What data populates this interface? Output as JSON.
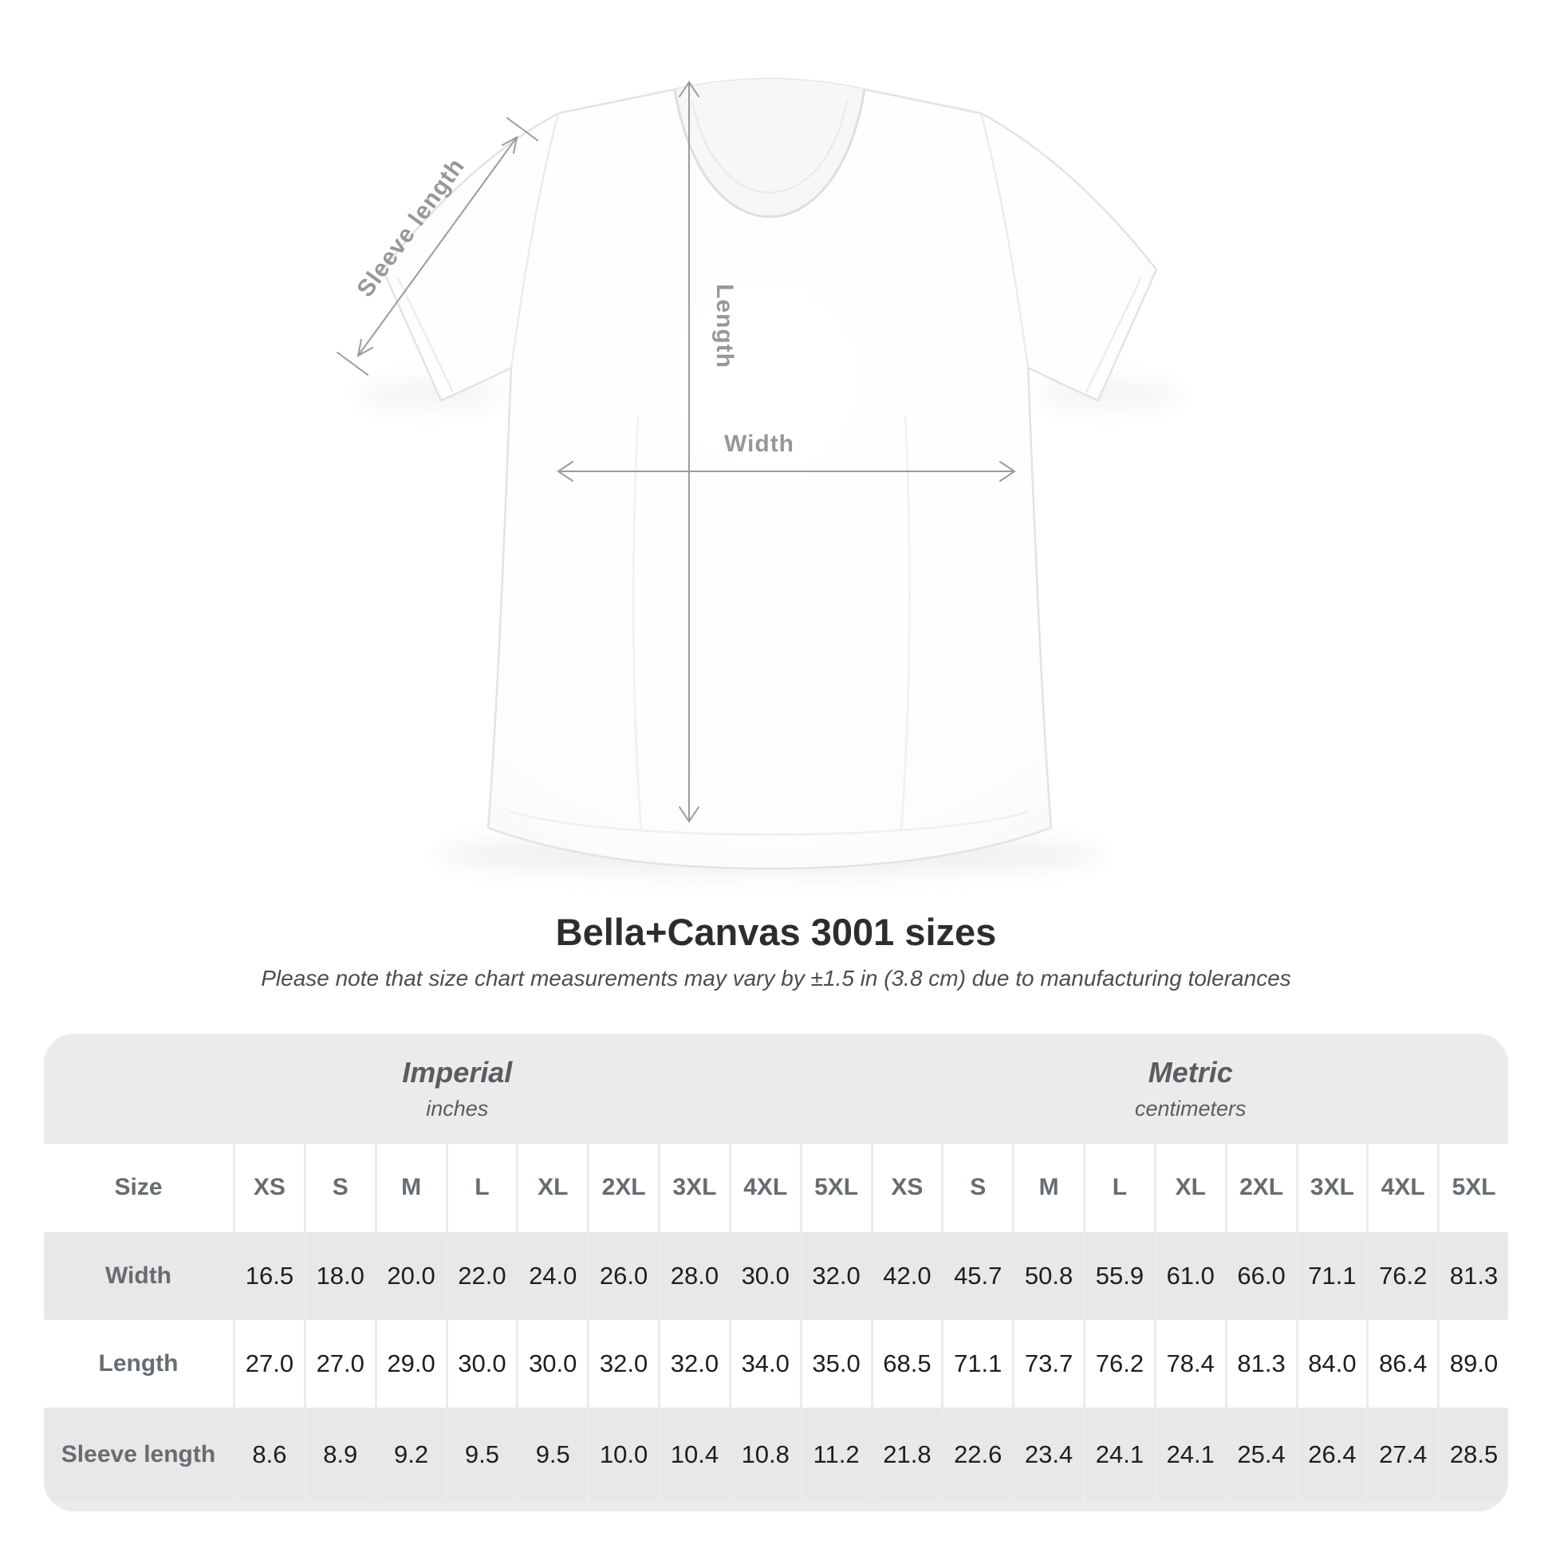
{
  "title": "Bella+Canvas 3001 sizes",
  "subtitle": "Please note that size chart measurements may vary by ±1.5 in (3.8 cm) due to manufacturing tolerances",
  "diagram": {
    "labels": {
      "sleeve_length": "Sleeve length",
      "length": "Length",
      "width": "Width"
    }
  },
  "table": {
    "groups": [
      {
        "label": "Imperial",
        "unit": "inches"
      },
      {
        "label": "Metric",
        "unit": "centimeters"
      }
    ],
    "size_label": "Size",
    "columns": [
      "XS",
      "S",
      "M",
      "L",
      "XL",
      "2XL",
      "3XL",
      "4XL",
      "5XL",
      "XS",
      "S",
      "M",
      "L",
      "XL",
      "2XL",
      "3XL",
      "4XL",
      "5XL"
    ],
    "rows": [
      {
        "label": "Width",
        "values": [
          "16.5",
          "18.0",
          "20.0",
          "22.0",
          "24.0",
          "26.0",
          "28.0",
          "30.0",
          "32.0",
          "42.0",
          "45.7",
          "50.8",
          "55.9",
          "61.0",
          "66.0",
          "71.1",
          "76.2",
          "81.3"
        ]
      },
      {
        "label": "Length",
        "values": [
          "27.0",
          "27.0",
          "29.0",
          "30.0",
          "30.0",
          "32.0",
          "32.0",
          "34.0",
          "35.0",
          "68.5",
          "71.1",
          "73.7",
          "76.2",
          "78.4",
          "81.3",
          "84.0",
          "86.4",
          "89.0"
        ]
      },
      {
        "label": "Sleeve length",
        "values": [
          "8.6",
          "8.9",
          "9.2",
          "9.5",
          "9.5",
          "10.0",
          "10.4",
          "10.8",
          "11.2",
          "21.8",
          "22.6",
          "23.4",
          "24.1",
          "24.1",
          "25.4",
          "26.4",
          "27.4",
          "28.5"
        ]
      }
    ]
  },
  "colors": {
    "annotation_gray": "#9b9b9b",
    "title_text": "#2d2d2d",
    "card_background": "#ecebeb",
    "stripe_row": "#e9e7e7",
    "header_text": "#676c72",
    "value_text": "#1e1e1e"
  }
}
